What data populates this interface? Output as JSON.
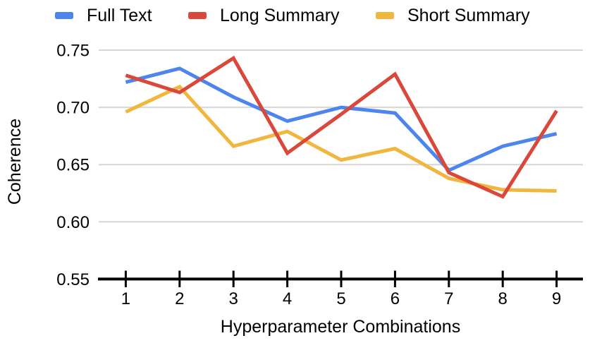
{
  "page": {
    "background": "#ffffff"
  },
  "chart_data": {
    "type": "line",
    "title": "",
    "xlabel": "Hyperparameter Combinations",
    "ylabel": "Coherence",
    "categories": [
      "1",
      "2",
      "3",
      "4",
      "5",
      "6",
      "7",
      "8",
      "9"
    ],
    "series": [
      {
        "name": "Full Text",
        "color": "#4D85EE",
        "values": [
          0.722,
          0.734,
          0.709,
          0.688,
          0.7,
          0.695,
          0.645,
          0.666,
          0.677
        ]
      },
      {
        "name": "Long Summary",
        "color": "#DA483C",
        "values": [
          0.728,
          0.713,
          0.743,
          0.66,
          0.694,
          0.729,
          0.643,
          0.622,
          0.697
        ]
      },
      {
        "name": "Short Summary",
        "color": "#F0B63D",
        "values": [
          0.696,
          0.718,
          0.666,
          0.679,
          0.654,
          0.664,
          0.638,
          0.628,
          0.627
        ]
      }
    ],
    "ylim": [
      0.55,
      0.75
    ],
    "yticks": [
      0.55,
      0.6,
      0.65,
      0.7,
      0.75
    ],
    "ytick_labels": [
      "0.55",
      "0.60",
      "0.65",
      "0.70",
      "0.75"
    ],
    "grid": true,
    "legend_position": "top",
    "draw_order": [
      0,
      2,
      1
    ],
    "gridline_color": "#D6D6D6",
    "axis_color": "#000000",
    "text_color": "#000000"
  }
}
